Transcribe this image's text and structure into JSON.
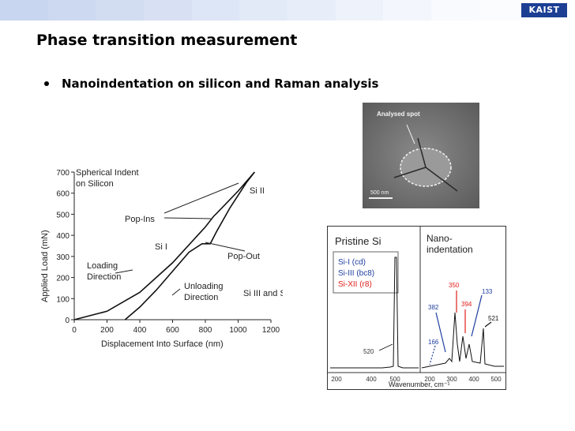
{
  "topbar_colors": [
    "#c8d6ef",
    "#cdd9f1",
    "#d2ddf2",
    "#d8e1f4",
    "#dde6f6",
    "#e3eaf7",
    "#e8eef9",
    "#eef2fa",
    "#f3f6fc",
    "#f8fafd",
    "#fbfcfe",
    "#ffffff"
  ],
  "logo": {
    "text": "KAIST"
  },
  "slide": {
    "title": "Phase transition measurement",
    "bullets": [
      "Nanoindentation on silicon and Raman analysis"
    ]
  },
  "indent_chart": {
    "caption_line1": "Spherical Indent",
    "caption_line2": "on Silicon",
    "annotations": {
      "si2": "Si II",
      "popins": "Pop-Ins",
      "si1": "Si I",
      "popout": "Pop-Out",
      "loading1": "Loading",
      "loading2": "Direction",
      "unloading1": "Unloading",
      "unloading2": "Direction",
      "si3_12": "Si III and Si XII"
    }
  },
  "sem_image": {
    "label": "Analysed spot",
    "scalebar": "500 nm"
  },
  "raman": {
    "pristine_title": "Pristine Si",
    "nano_title_1": "Nano-",
    "nano_title_2": "indentation",
    "legend": [
      {
        "text": "Si-I (cd)",
        "color": "#1f3fa0"
      },
      {
        "text": "Si-III (bc8)",
        "color": "#1f3fa0"
      },
      {
        "text": "Si-XII (r8)",
        "color": "#e0201c"
      }
    ],
    "peak_labels": {
      "p520": "520",
      "p350": "350",
      "p133": "133",
      "p394": "394",
      "p382": "382",
      "p521": "521",
      "p166": "166"
    },
    "xlabel": "Wavenumber, cm⁻¹"
  },
  "chart_data": {
    "type": "line",
    "title": "",
    "xlabel": "Displacement Into Surface (nm)",
    "ylabel": "Applied Load (mN)",
    "xlim": [
      0,
      1200
    ],
    "ylim": [
      0,
      700
    ],
    "x_ticks": [
      "0",
      "200",
      "400",
      "600",
      "800",
      "1000",
      "1200"
    ],
    "y_ticks": [
      "0",
      "100",
      "200",
      "300",
      "400",
      "500",
      "600",
      "700"
    ],
    "series": [
      {
        "name": "",
        "x": [
          0,
          200,
          400,
          600,
          800,
          850,
          870,
          1000,
          1100
        ],
        "y": [
          0,
          40,
          130,
          270,
          440,
          490,
          505,
          610,
          700
        ]
      },
      {
        "name": "",
        "x": [
          310,
          400,
          500,
          600,
          700,
          780,
          830,
          870,
          950,
          1050,
          1100
        ],
        "y": [
          0,
          60,
          140,
          230,
          320,
          360,
          360,
          420,
          530,
          650,
          700
        ]
      }
    ]
  },
  "raman_axis": {
    "x_ticks_left": [
      "200",
      "400",
      "500"
    ],
    "x_ticks_right": [
      "200",
      "300",
      "400",
      "500"
    ]
  }
}
